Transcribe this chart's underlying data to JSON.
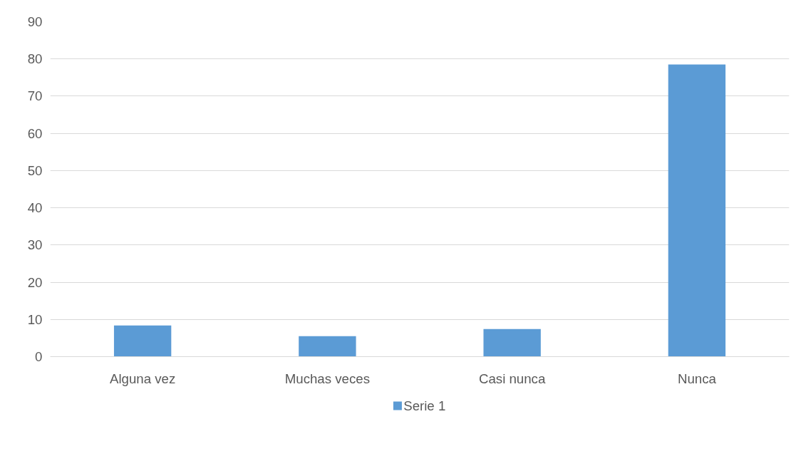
{
  "chart_data": {
    "type": "bar",
    "categories": [
      "Alguna vez",
      "Muchas veces",
      "Casi nunca",
      "Nunca"
    ],
    "series": [
      {
        "name": "Serie 1",
        "color": "#5b9bd5",
        "values": [
          8.4,
          5.5,
          7.4,
          78.5
        ]
      }
    ],
    "ylim": [
      0,
      90
    ],
    "yticks": [
      0,
      10,
      20,
      30,
      40,
      50,
      60,
      70,
      80,
      90
    ],
    "grid": "y",
    "legend": "bottom"
  }
}
